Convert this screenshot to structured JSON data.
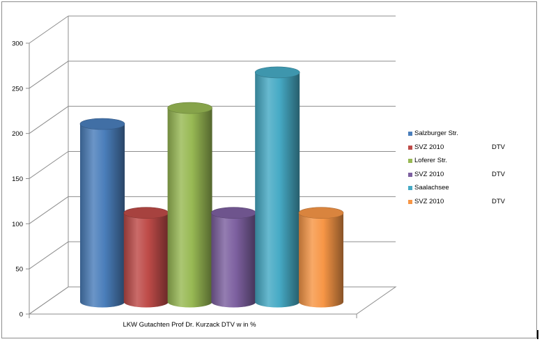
{
  "chart_data": {
    "type": "bar",
    "style": "3d-cylinder",
    "xlabel": "LKW Gutachten Prof Dr. Kurzack  DTV w in %",
    "ylim": [
      0,
      300
    ],
    "yticks": [
      "0",
      "50",
      "100",
      "150",
      "200",
      "250",
      "300"
    ],
    "grid": true,
    "legend_position": "right",
    "series": [
      {
        "name": "Salzburger Str.",
        "value": 200,
        "color": "#4a7ebb"
      },
      {
        "name": "SVZ 2010",
        "unit": "DTV",
        "value": 100,
        "color": "#be4b48"
      },
      {
        "name": "Loferer Str.",
        "value": 218,
        "color": "#98b954"
      },
      {
        "name": "SVZ 2010",
        "unit": "DTV",
        "value": 100,
        "color": "#7d60a0"
      },
      {
        "name": "Saalachsee",
        "value": 258,
        "color": "#46aac5"
      },
      {
        "name": "SVZ 2010",
        "unit": "DTV",
        "value": 100,
        "color": "#f79646"
      }
    ]
  }
}
